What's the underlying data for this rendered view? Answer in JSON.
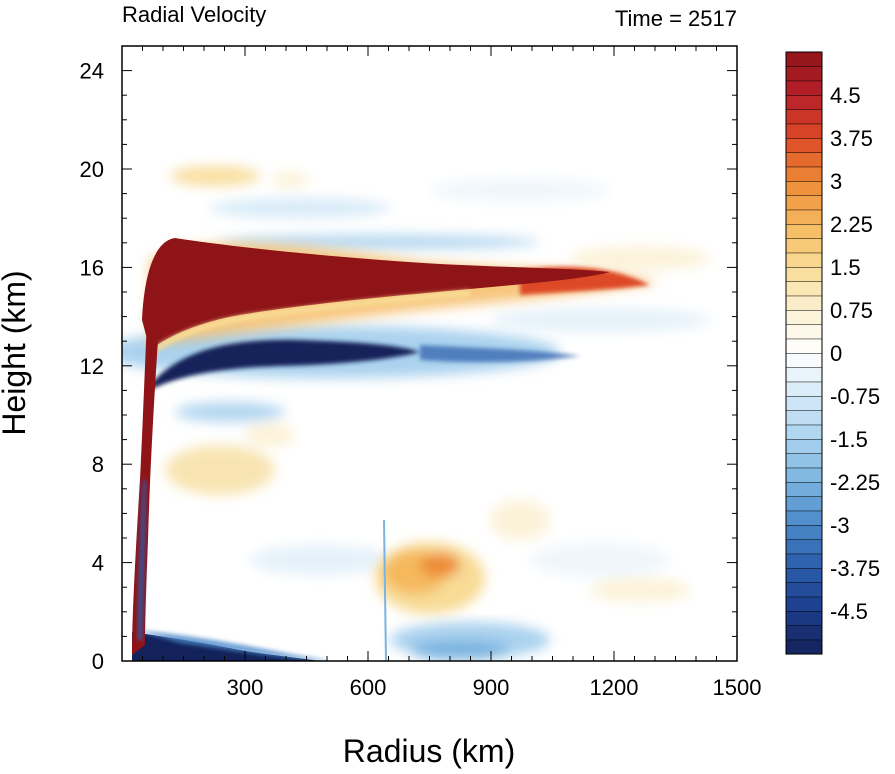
{
  "chart_data": {
    "type": "heatmap",
    "title": "Radial Velocity",
    "subtitle": "Time = 2517",
    "xlabel": "Radius (km)",
    "ylabel": "Height (km)",
    "xlim": [
      0,
      1500
    ],
    "ylim": [
      0,
      25
    ],
    "x_ticks": [
      "300",
      "600",
      "900",
      "1200",
      "1500"
    ],
    "y_ticks": [
      "0",
      "4",
      "8",
      "12",
      "16",
      "20",
      "24"
    ],
    "colorbar": {
      "min": -5.25,
      "max": 5.25,
      "step": 0.25,
      "labels": [
        "4.5",
        "3.75",
        "3",
        "2.25",
        "1.5",
        "0.75",
        "0",
        "-0.75",
        "-1.5",
        "-2.25",
        "-3",
        "-3.75",
        "-4.5"
      ],
      "colors": [
        "#13225a",
        "#1d3c8c",
        "#2a5caa",
        "#4a88c8",
        "#7ab4e0",
        "#aad2ee",
        "#d4e9f7",
        "#ffffff",
        "#fbf1d4",
        "#f8dc96",
        "#f5b85c",
        "#ed8a36",
        "#dd4a26",
        "#b8202a",
        "#8f1418"
      ]
    },
    "features": [
      {
        "name": "upper-level outflow",
        "value": "> 4.5",
        "r": [
          60,
          1300
        ],
        "z": [
          13.5,
          17.3
        ]
      },
      {
        "name": "mid-level inflow",
        "value": "< -4.5",
        "r": [
          60,
          620
        ],
        "z": [
          11.5,
          13.5
        ]
      },
      {
        "name": "boundary-layer inflow",
        "value": "< -4.5",
        "r": [
          20,
          480
        ],
        "z": [
          0,
          1.3
        ]
      },
      {
        "name": "eyewall updraft outflow",
        "value": "> 4.5",
        "r": [
          15,
          80
        ],
        "z": [
          0.5,
          16
        ]
      },
      {
        "name": "lower-level outflow",
        "value": "~ 2.5",
        "r": [
          650,
          880
        ],
        "z": [
          2.5,
          4.8
        ]
      }
    ]
  }
}
